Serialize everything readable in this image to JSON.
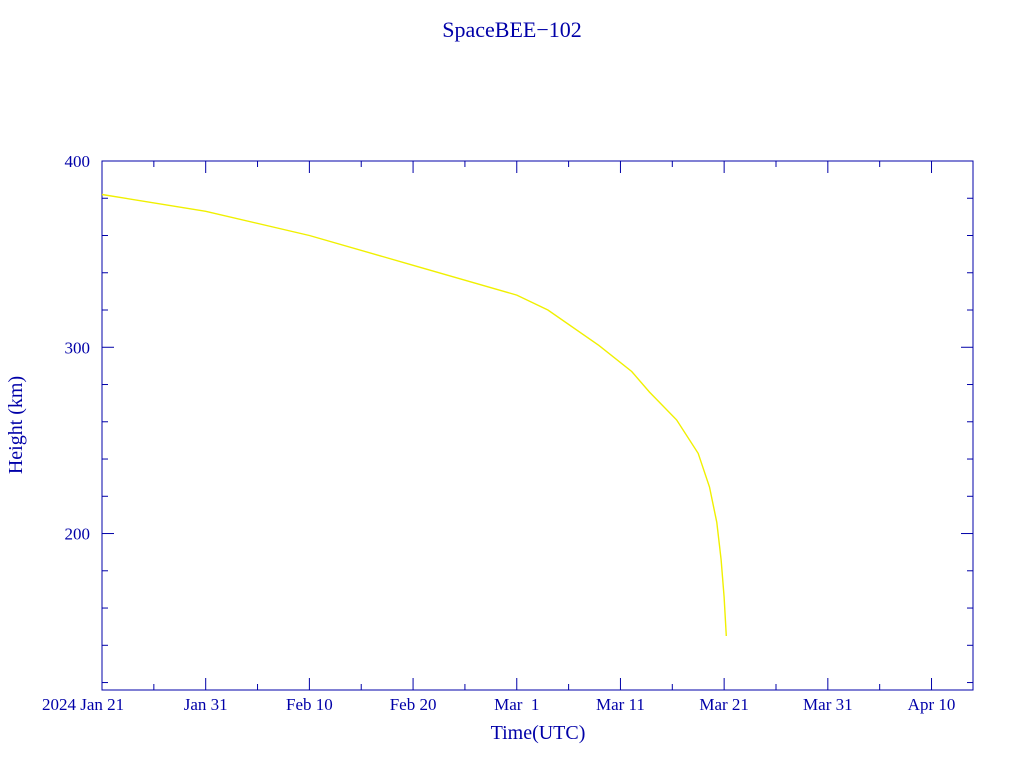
{
  "chart_data": {
    "type": "line",
    "title": "SpaceBEE−102",
    "xlabel": "Time(UTC)",
    "ylabel": "Height (km)",
    "xlim": [
      "2024-01-21",
      "2024-04-14"
    ],
    "ylim": [
      116,
      400
    ],
    "x_tick_labels": [
      "2024 Jan 21",
      "Jan 31",
      "Feb 10",
      "Feb 20",
      "Mar  1",
      "Mar 11",
      "Mar 21",
      "Mar 31",
      "Apr 10"
    ],
    "x_tick_dates": [
      "2024-01-21",
      "2024-01-31",
      "2024-02-10",
      "2024-02-20",
      "2024-03-01",
      "2024-03-11",
      "2024-03-21",
      "2024-03-31",
      "2024-04-10"
    ],
    "y_tick_labels": [
      "200",
      "300",
      "400"
    ],
    "y_ticks": [
      200,
      300,
      400
    ],
    "grid": false,
    "colors": {
      "axis": "#0000a8",
      "line": "#f0f000",
      "text": "#0000a8"
    },
    "series": [
      {
        "x": [
          "2024-01-21T00:00",
          "2024-01-31T00:00",
          "2024-02-10T00:00",
          "2024-02-20T00:00",
          "2024-03-01T00:00",
          "2024-03-04T00:00",
          "2024-03-08T22:00",
          "2024-03-12T02:00",
          "2024-03-13T19:00",
          "2024-03-16T10:00",
          "2024-03-18T12:00",
          "2024-03-19T14:00",
          "2024-03-20T07:00",
          "2024-03-20T17:00",
          "2024-03-21T00:00",
          "2024-03-21T05:00"
        ],
        "y": [
          382,
          373,
          360,
          344,
          328,
          320,
          301,
          287,
          276,
          261,
          243,
          225,
          206,
          186,
          166,
          145
        ]
      }
    ]
  }
}
